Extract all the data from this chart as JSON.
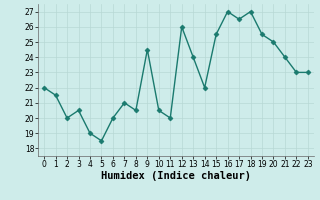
{
  "x": [
    0,
    1,
    2,
    3,
    4,
    5,
    6,
    7,
    8,
    9,
    10,
    11,
    12,
    13,
    14,
    15,
    16,
    17,
    18,
    19,
    20,
    21,
    22,
    23
  ],
  "y": [
    22,
    21.5,
    20,
    20.5,
    19,
    18.5,
    20,
    21,
    20.5,
    24.5,
    20.5,
    20,
    26,
    24,
    22,
    25.5,
    27,
    26.5,
    27,
    25.5,
    25,
    24,
    23,
    23
  ],
  "line_color": "#1a7a6e",
  "marker": "D",
  "marker_size": 2.5,
  "bg_color": "#ceecea",
  "grid_color_major": "#b8d8d5",
  "grid_color_minor": "#b8d8d5",
  "xlabel": "Humidex (Indice chaleur)",
  "ylim": [
    17.5,
    27.5
  ],
  "xlim": [
    -0.5,
    23.5
  ],
  "yticks": [
    18,
    19,
    20,
    21,
    22,
    23,
    24,
    25,
    26,
    27
  ],
  "xticks": [
    0,
    1,
    2,
    3,
    4,
    5,
    6,
    7,
    8,
    9,
    10,
    11,
    12,
    13,
    14,
    15,
    16,
    17,
    18,
    19,
    20,
    21,
    22,
    23
  ],
  "tick_fontsize": 5.5,
  "xlabel_fontsize": 7.5,
  "line_width": 1.0
}
